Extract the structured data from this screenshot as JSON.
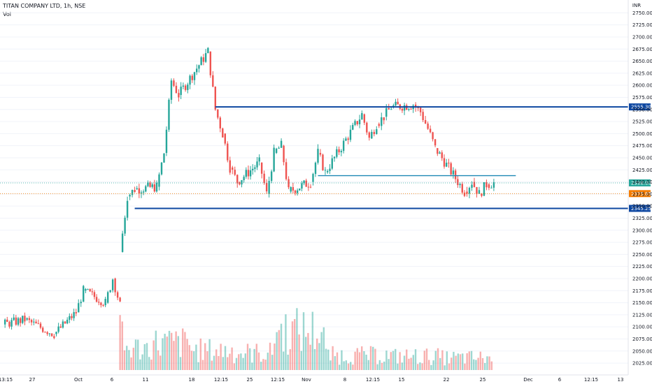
{
  "header": {
    "symbol": "TITAN COMPANY LTD, 1h, NSE",
    "indicator": "Vol"
  },
  "axis": {
    "currency": "INR"
  },
  "colors": {
    "up": "#26a69a",
    "down": "#ef5350",
    "level_line": "#0d47a1",
    "mid_line": "#1e88b4",
    "current_price_badge": "#26a69a",
    "prev_close_badge": "#f57c00",
    "level_badge": "#0d47a1"
  },
  "chart_data": {
    "type": "candlestick",
    "y_range": [
      2015,
      2765
    ],
    "y_ticks": [
      2750,
      2725,
      2700,
      2675,
      2650,
      2625,
      2600,
      2575,
      2550,
      2525,
      2500,
      2475,
      2450,
      2425,
      2400,
      2375,
      2350,
      2325,
      2300,
      2275,
      2250,
      2225,
      2200,
      2175,
      2150,
      2125,
      2100,
      2075,
      2050,
      2025
    ],
    "x_tick_labels": [
      "13:15",
      "27",
      "Oct",
      "6",
      "11",
      "18",
      "12:15",
      "25",
      "12:15",
      "Nov",
      "8",
      "12:15",
      "15",
      "22",
      "25",
      "Dec",
      "6",
      "12:15",
      "13"
    ],
    "price_series_path": [
      {
        "x": "6 Oct",
        "y": 2255
      },
      {
        "x": "7 Oct",
        "y": 2370
      },
      {
        "x": "8 Oct",
        "y": 2385
      },
      {
        "x": "11 Oct",
        "y": 2390
      },
      {
        "x": "12 Oct",
        "y": 2460
      },
      {
        "x": "13 Oct",
        "y": 2610
      },
      {
        "x": "14 Oct",
        "y": 2580
      },
      {
        "x": "18 Oct",
        "y": 2670
      },
      {
        "x": "19 Oct",
        "y": 2550
      },
      {
        "x": "20 Oct",
        "y": 2500
      },
      {
        "x": "21 Oct",
        "y": 2430
      },
      {
        "x": "22 Oct",
        "y": 2400
      },
      {
        "x": "25 Oct",
        "y": 2440
      },
      {
        "x": "26 Oct",
        "y": 2375
      },
      {
        "x": "27 Oct",
        "y": 2460
      },
      {
        "x": "28 Oct",
        "y": 2475
      },
      {
        "x": "29 Oct",
        "y": 2380
      },
      {
        "x": "1 Nov",
        "y": 2400
      },
      {
        "x": "2 Nov",
        "y": 2460
      },
      {
        "x": "3 Nov",
        "y": 2420
      },
      {
        "x": "8 Nov",
        "y": 2540
      },
      {
        "x": "9 Nov",
        "y": 2490
      },
      {
        "x": "10 Nov",
        "y": 2520
      },
      {
        "x": "11 Nov",
        "y": 2535
      },
      {
        "x": "12 Nov",
        "y": 2555
      },
      {
        "x": "15 Nov",
        "y": 2560
      },
      {
        "x": "16 Nov",
        "y": 2545
      },
      {
        "x": "17 Nov",
        "y": 2510
      },
      {
        "x": "18 Nov",
        "y": 2470
      },
      {
        "x": "22 Nov",
        "y": 2380
      },
      {
        "x": "23 Nov",
        "y": 2400
      },
      {
        "x": "24 Nov",
        "y": 2375
      },
      {
        "x": "25 Nov",
        "y": 2395
      },
      {
        "x": "26 Nov",
        "y": 2398
      }
    ],
    "levels": [
      {
        "value": 2555.3,
        "label": "2555.30",
        "style": "level"
      },
      {
        "value": 2345.25,
        "label": "2345.25",
        "style": "level"
      },
      {
        "value": 2413,
        "label": "",
        "style": "mid"
      }
    ],
    "current_price": {
      "value": 2398.0,
      "label": "2398.00"
    },
    "previous_close": {
      "value": 2375.85,
      "label": "2375.85"
    },
    "volume_series": [
      {
        "x": "6 Oct",
        "v": 70
      },
      {
        "x": "7 Oct",
        "v": 45
      },
      {
        "x": "13 Oct",
        "v": 55
      },
      {
        "x": "18 Oct",
        "v": 40
      },
      {
        "x": "25 Oct",
        "v": 35
      },
      {
        "x": "29 Oct",
        "v": 80
      },
      {
        "x": "8 Nov",
        "v": 30
      },
      {
        "x": "15 Nov",
        "v": 28
      },
      {
        "x": "22 Nov",
        "v": 25
      }
    ],
    "volume_pane_overlay": [
      {
        "x": "20 Sep",
        "y": 2105
      },
      {
        "x": "23 Sep",
        "y": 2115
      },
      {
        "x": "27 Sep",
        "y": 2085
      },
      {
        "x": "30 Sep",
        "y": 2130
      },
      {
        "x": "1 Oct",
        "y": 2175
      },
      {
        "x": "4 Oct",
        "y": 2150
      },
      {
        "x": "5 Oct",
        "y": 2200
      },
      {
        "x": "6 Oct",
        "y": 2145
      }
    ]
  }
}
